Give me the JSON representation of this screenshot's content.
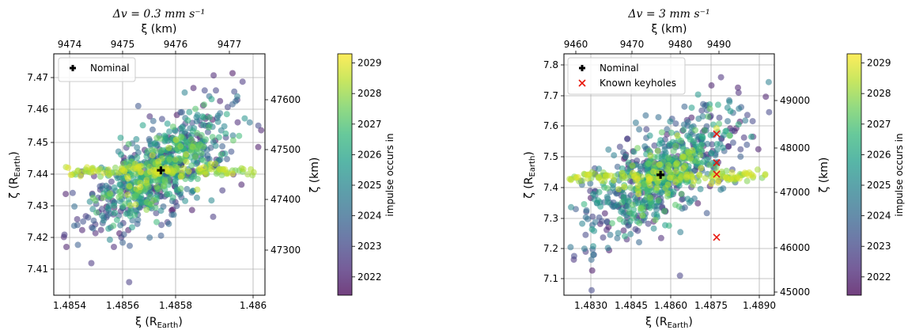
{
  "chart_data": [
    {
      "type": "scatter",
      "title": "Δv = 0.3 mm s⁻¹",
      "xlabel": "ξ (R_Earth)",
      "ylabel": "ζ (R_Earth)",
      "xlabel_top": "ξ (km)",
      "ylabel_right": "ζ (km)",
      "xlim": [
        1.48534,
        1.48603
      ],
      "ylim": [
        7.4025,
        7.4773
      ],
      "xticks": [
        "1.4854",
        "1.4856",
        "1.4858",
        "1.486"
      ],
      "yticks": [
        "7.41",
        "7.42",
        "7.43",
        "7.44",
        "7.45",
        "7.46",
        "7.47"
      ],
      "xticks_top": [
        "9474",
        "9475",
        "9476",
        "9477"
      ],
      "yticks_right": [
        "47300",
        "47400",
        "47500",
        "47600"
      ],
      "grid": true,
      "legend": {
        "placement": "top-left",
        "entries": [
          {
            "label": "Nominal",
            "marker": "plus",
            "color": "#000000"
          }
        ]
      },
      "nominal": {
        "x": 1.48569,
        "y": 7.4412
      },
      "cloud": {
        "n": 900,
        "center": [
          1.48569,
          7.4412
        ],
        "spread_x": 0.00011,
        "spread_y": 0.011,
        "band_y": 7.4412,
        "band_x_range": [
          1.48535,
          1.486
        ]
      },
      "keyholes": [],
      "colorbar": {
        "label": "impulse occurs in",
        "min": 2021.4,
        "max": 2029.3,
        "ticks": [
          "2022",
          "2023",
          "2024",
          "2025",
          "2026",
          "2027",
          "2028",
          "2029"
        ]
      },
      "colormap": [
        "#440154",
        "#482878",
        "#3e4a89",
        "#31688e",
        "#26828e",
        "#1f9e89",
        "#35b779",
        "#6ece58",
        "#b5de2b",
        "#fde725"
      ]
    },
    {
      "type": "scatter",
      "title": "Δv = 3 mm s⁻¹",
      "xlabel": "ξ (R_Earth)",
      "ylabel": "ζ (R_Earth)",
      "xlabel_top": "ξ (km)",
      "ylabel_right": "ζ (km)",
      "xlim": [
        1.48257,
        1.48906
      ],
      "ylim": [
        7.046,
        7.842
      ],
      "xticks": [
        "1.4830",
        "1.4845",
        "1.4860",
        "1.4875",
        "1.4890"
      ],
      "yticks": [
        "7.1",
        "7.2",
        "7.3",
        "7.4",
        "7.5",
        "7.6",
        "7.7",
        "7.8"
      ],
      "xticks_top": [
        "9460",
        "9470",
        "9480",
        "9490"
      ],
      "yticks_right": [
        "45000",
        "46000",
        "47000",
        "48000",
        "49000"
      ],
      "grid": true,
      "legend": {
        "placement": "top-left",
        "entries": [
          {
            "label": "Nominal",
            "marker": "plus",
            "color": "#000000"
          },
          {
            "label": "Known keyholes",
            "marker": "x",
            "color": "#e8160c"
          }
        ]
      },
      "nominal": {
        "x": 1.48555,
        "y": 7.443
      },
      "cloud": {
        "n": 900,
        "center": [
          1.48555,
          7.443
        ],
        "spread_x": 0.0011,
        "spread_y": 0.12,
        "band_y": 7.436,
        "band_x_range": [
          1.4827,
          1.4888
        ]
      },
      "keyholes": [
        {
          "x": 1.48728,
          "y": 7.578
        },
        {
          "x": 1.48728,
          "y": 7.483
        },
        {
          "x": 1.48728,
          "y": 7.445
        },
        {
          "x": 1.48728,
          "y": 7.237
        }
      ],
      "colorbar": {
        "label": "impulse occurs in",
        "min": 2021.4,
        "max": 2029.3,
        "ticks": [
          "2022",
          "2023",
          "2024",
          "2025",
          "2026",
          "2027",
          "2028",
          "2029"
        ]
      },
      "colormap": [
        "#440154",
        "#482878",
        "#3e4a89",
        "#31688e",
        "#26828e",
        "#1f9e89",
        "#35b779",
        "#6ece58",
        "#b5de2b",
        "#fde725"
      ]
    }
  ]
}
